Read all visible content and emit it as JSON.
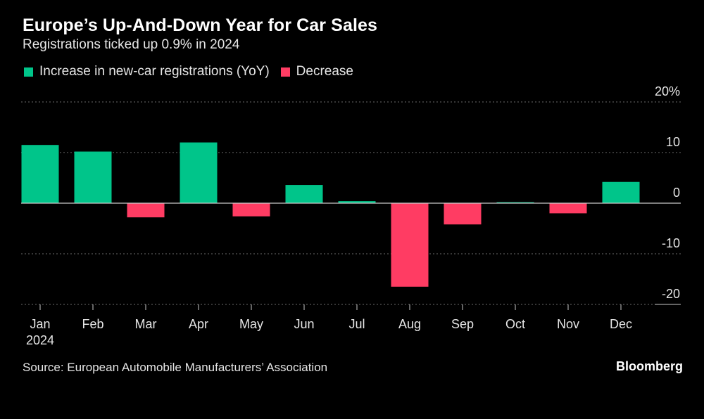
{
  "colors": {
    "increase": "#00c58a",
    "decrease": "#ff3c63",
    "grid": "#6b6b6b",
    "axis": "#c8c8c8"
  },
  "chart_data": {
    "type": "bar",
    "title": "Europe’s Up-And-Down Year for Car Sales",
    "subtitle": "Registrations ticked up 0.9% in 2024",
    "legend": [
      {
        "name": "Increase in new-car registrations (YoY)",
        "color": "#00c58a"
      },
      {
        "name": "Decrease",
        "color": "#ff3c63"
      }
    ],
    "categories": [
      "Jan",
      "Feb",
      "Mar",
      "Apr",
      "May",
      "Jun",
      "Jul",
      "Aug",
      "Sep",
      "Oct",
      "Nov",
      "Dec"
    ],
    "year_label": "2024",
    "values": [
      11.5,
      10.2,
      -2.8,
      12.0,
      -2.6,
      3.6,
      0.4,
      -16.5,
      -4.2,
      0.2,
      -2.0,
      4.2
    ],
    "ylim": [
      -20,
      20
    ],
    "yticks": [
      {
        "value": 20,
        "label": "20%"
      },
      {
        "value": 10,
        "label": "10"
      },
      {
        "value": 0,
        "label": "0"
      },
      {
        "value": -10,
        "label": "-10"
      },
      {
        "value": -20,
        "label": "-20"
      }
    ],
    "xlabel": "",
    "ylabel": ""
  },
  "footer": {
    "source": "Source: European Automobile Manufacturers’ Association",
    "brand": "Bloomberg"
  }
}
